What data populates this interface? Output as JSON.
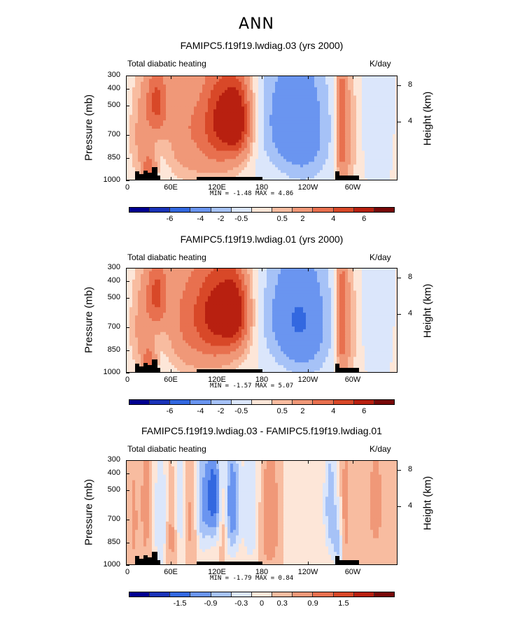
{
  "header": {
    "title": "ANN"
  },
  "chart_data": [
    {
      "type": "heatmap",
      "title": "FAMIPC5.f19f19.lwdiag.03 (yrs 2000)",
      "subtitle_left": "Total diabatic heating",
      "units": "K/day",
      "ylabel": "Pressure (mb)",
      "ylabel_right": "Height (km)",
      "y_ticks": [
        "300",
        "400",
        "500",
        "700",
        "850",
        "1000"
      ],
      "y_ticks_right": [
        "8",
        "4"
      ],
      "x_ticks": [
        "0",
        "60E",
        "120E",
        "180",
        "120W",
        "60W"
      ],
      "stats": {
        "min_label": "MIN =",
        "min": "-1.48",
        "max_label": "MAX =",
        "max": "4.86"
      },
      "colorbar_labels": [
        "-6",
        "-4",
        "-2",
        "-0.5",
        "0.5",
        "2",
        "4",
        "6"
      ],
      "features": [
        {
          "lon": 40,
          "p": 400,
          "v": 3.0,
          "wx": 10,
          "wp": 120
        },
        {
          "lon": 20,
          "p": 600,
          "v": 1.2,
          "wx": 12,
          "wp": 250
        },
        {
          "lon": 30,
          "p": 900,
          "v": 2.5,
          "wx": 6,
          "wp": 120
        },
        {
          "lon": 75,
          "p": 500,
          "v": 1.5,
          "wx": 18,
          "wp": 250
        },
        {
          "lon": 125,
          "p": 480,
          "v": 4.0,
          "wx": 20,
          "wp": 200
        },
        {
          "lon": 148,
          "p": 500,
          "v": 3.5,
          "wx": 12,
          "wp": 150
        },
        {
          "lon": 110,
          "p": 800,
          "v": 0.8,
          "wx": 30,
          "wp": 200
        },
        {
          "lon": 215,
          "p": 500,
          "v": -1.4,
          "wx": 28,
          "wp": 250
        },
        {
          "lon": 240,
          "p": 600,
          "v": -0.8,
          "wx": 22,
          "wp": 300
        },
        {
          "lon": 285,
          "p": 550,
          "v": 2.6,
          "wx": 5,
          "wp": 300
        },
        {
          "lon": 295,
          "p": 600,
          "v": 1.0,
          "wx": 8,
          "wp": 350
        },
        {
          "lon": 335,
          "p": 500,
          "v": -0.5,
          "wx": 12,
          "wp": 200
        }
      ],
      "palette": [
        "#000090",
        "#1a33b8",
        "#3368e0",
        "#6a95f0",
        "#a6c2f7",
        "#dbe6fb",
        "#fde6d8",
        "#f8bca0",
        "#f09878",
        "#e8704f",
        "#d84828",
        "#b82010",
        "#780808"
      ],
      "levels": [
        -6,
        -4,
        -2,
        -1,
        -0.5,
        0,
        0.5,
        1,
        2,
        3,
        4,
        6
      ],
      "terrain": true
    },
    {
      "type": "heatmap",
      "title": "FAMIPC5.f19f19.lwdiag.01 (yrs 2000)",
      "subtitle_left": "Total diabatic heating",
      "units": "K/day",
      "ylabel": "Pressure (mb)",
      "ylabel_right": "Height (km)",
      "y_ticks": [
        "300",
        "400",
        "500",
        "700",
        "850",
        "1000"
      ],
      "y_ticks_right": [
        "8",
        "4"
      ],
      "x_ticks": [
        "0",
        "60E",
        "120E",
        "180",
        "120W",
        "60W"
      ],
      "stats": {
        "min_label": "MIN =",
        "min": "-1.57",
        "max_label": "MAX =",
        "max": "5.07"
      },
      "colorbar_labels": [
        "-6",
        "-4",
        "-2",
        "-0.5",
        "0.5",
        "2",
        "4",
        "6"
      ],
      "features": [
        {
          "lon": 40,
          "p": 400,
          "v": 3.0,
          "wx": 10,
          "wp": 120
        },
        {
          "lon": 20,
          "p": 600,
          "v": 1.2,
          "wx": 12,
          "wp": 250
        },
        {
          "lon": 30,
          "p": 900,
          "v": 2.5,
          "wx": 6,
          "wp": 120
        },
        {
          "lon": 75,
          "p": 500,
          "v": 1.6,
          "wx": 18,
          "wp": 250
        },
        {
          "lon": 120,
          "p": 480,
          "v": 4.3,
          "wx": 22,
          "wp": 200
        },
        {
          "lon": 145,
          "p": 500,
          "v": 3.2,
          "wx": 12,
          "wp": 150
        },
        {
          "lon": 110,
          "p": 800,
          "v": 0.9,
          "wx": 30,
          "wp": 200
        },
        {
          "lon": 220,
          "p": 520,
          "v": -1.5,
          "wx": 28,
          "wp": 250
        },
        {
          "lon": 240,
          "p": 620,
          "v": -0.8,
          "wx": 22,
          "wp": 300
        },
        {
          "lon": 285,
          "p": 550,
          "v": 2.6,
          "wx": 5,
          "wp": 300
        },
        {
          "lon": 295,
          "p": 600,
          "v": 1.0,
          "wx": 8,
          "wp": 350
        },
        {
          "lon": 335,
          "p": 500,
          "v": -0.5,
          "wx": 12,
          "wp": 200
        }
      ],
      "palette": [
        "#000090",
        "#1a33b8",
        "#3368e0",
        "#6a95f0",
        "#a6c2f7",
        "#dbe6fb",
        "#fde6d8",
        "#f8bca0",
        "#f09878",
        "#e8704f",
        "#d84828",
        "#b82010",
        "#780808"
      ],
      "levels": [
        -6,
        -4,
        -2,
        -1,
        -0.5,
        0,
        0.5,
        1,
        2,
        3,
        4,
        6
      ],
      "terrain": true
    },
    {
      "type": "heatmap",
      "title": "FAMIPC5.f19f19.lwdiag.03 - FAMIPC5.f19f19.lwdiag.01",
      "subtitle_left": "Total diabatic heating",
      "units": "K/day",
      "ylabel": "Pressure (mb)",
      "ylabel_right": "Height (km)",
      "y_ticks": [
        "300",
        "400",
        "500",
        "700",
        "850",
        "1000"
      ],
      "y_ticks_right": [
        "8",
        "4"
      ],
      "x_ticks": [
        "0",
        "60E",
        "120E",
        "180",
        "120W",
        "60W"
      ],
      "stats": {
        "min_label": "MIN =",
        "min": "-1.79",
        "max_label": "MAX =",
        "max": "0.84"
      },
      "colorbar_labels": [
        "-1.5",
        "-0.9",
        "-0.3",
        "0",
        "0.3",
        "0.9",
        "1.5"
      ],
      "features": [
        {
          "lon": 10,
          "p": 600,
          "v": 0.4,
          "wx": 4,
          "wp": 300
        },
        {
          "lon": 25,
          "p": 500,
          "v": 0.6,
          "wx": 4,
          "wp": 250
        },
        {
          "lon": 45,
          "p": 600,
          "v": -0.6,
          "wx": 6,
          "wp": 350
        },
        {
          "lon": 60,
          "p": 700,
          "v": 0.5,
          "wx": 5,
          "wp": 250
        },
        {
          "lon": 70,
          "p": 500,
          "v": -0.5,
          "wx": 6,
          "wp": 300
        },
        {
          "lon": 85,
          "p": 600,
          "v": 0.4,
          "wx": 5,
          "wp": 300
        },
        {
          "lon": 100,
          "p": 500,
          "v": -0.7,
          "wx": 6,
          "wp": 250
        },
        {
          "lon": 115,
          "p": 450,
          "v": -1.4,
          "wx": 8,
          "wp": 200
        },
        {
          "lon": 128,
          "p": 600,
          "v": 0.5,
          "wx": 4,
          "wp": 200
        },
        {
          "lon": 140,
          "p": 500,
          "v": -1.2,
          "wx": 7,
          "wp": 250
        },
        {
          "lon": 165,
          "p": 550,
          "v": -0.6,
          "wx": 8,
          "wp": 300
        },
        {
          "lon": 190,
          "p": 600,
          "v": 0.6,
          "wx": 10,
          "wp": 300
        },
        {
          "lon": 230,
          "p": 600,
          "v": -0.3,
          "wx": 15,
          "wp": 300
        },
        {
          "lon": 270,
          "p": 500,
          "v": -0.8,
          "wx": 6,
          "wp": 250
        },
        {
          "lon": 280,
          "p": 800,
          "v": -0.6,
          "wx": 5,
          "wp": 200
        },
        {
          "lon": 290,
          "p": 550,
          "v": 0.5,
          "wx": 4,
          "wp": 300
        },
        {
          "lon": 330,
          "p": 500,
          "v": 0.4,
          "wx": 10,
          "wp": 300
        }
      ],
      "palette": [
        "#000090",
        "#1a33b8",
        "#3368e0",
        "#6a95f0",
        "#a6c2f7",
        "#dbe6fb",
        "#fde6d8",
        "#f8bca0",
        "#f09878",
        "#e8704f",
        "#d84828",
        "#b82010",
        "#780808"
      ],
      "levels": [
        -1.8,
        -1.5,
        -1.2,
        -0.9,
        -0.6,
        -0.3,
        0,
        0.3,
        0.6,
        0.9,
        1.2,
        1.5
      ],
      "terrain": true
    }
  ]
}
